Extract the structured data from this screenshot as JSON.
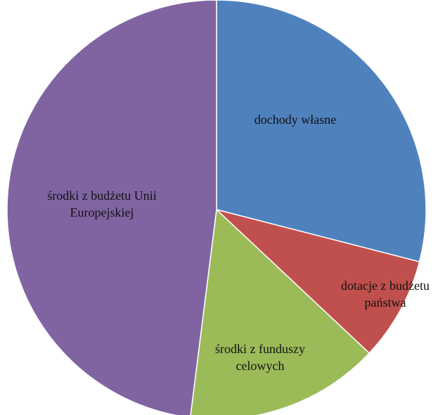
{
  "chart_data": {
    "type": "pie",
    "categories": [
      "dochody własne",
      "dotacje z budżetu państwa",
      "środki z funduszy celowych",
      "środki z budżetu Unii Europejskiej"
    ],
    "values": [
      29,
      8,
      15,
      48
    ],
    "colors": [
      "#4f81bd",
      "#c0504d",
      "#9bbb59",
      "#8064a2"
    ]
  }
}
